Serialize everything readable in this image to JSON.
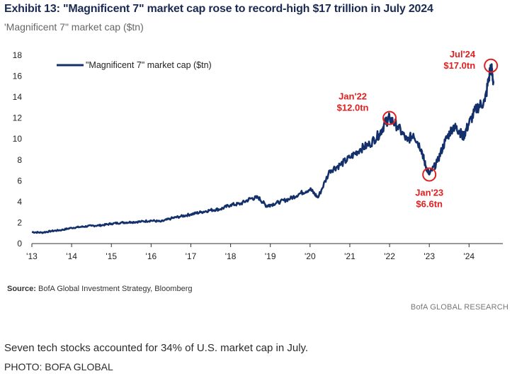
{
  "header": {
    "title": "Exhibit 13: \"Magnificent 7\" market cap rose to record-high $17 trillion in July 2024",
    "subtitle": "'Magnificent 7\" market cap ($tn)"
  },
  "footer": {
    "source_label": "Source:",
    "source_text": " BofA Global Investment Strategy, Bloomberg",
    "brand": "BofA GLOBAL RESEARCH"
  },
  "article": {
    "caption": "Seven tech stocks accounted for 34% of U.S. market cap in July.",
    "credit": "PHOTO: BOFA GLOBAL"
  },
  "colors": {
    "line": "#14306b",
    "annotation": "#e02020",
    "axis": "#333333"
  },
  "chart_data": {
    "type": "line",
    "title": "Exhibit 13: \"Magnificent 7\" market cap rose to record-high $17 trillion in July 2024",
    "ylim": [
      0,
      18
    ],
    "yticks": [
      0,
      2,
      4,
      6,
      8,
      10,
      12,
      14,
      16,
      18
    ],
    "xlim": [
      2013,
      2024.85
    ],
    "xticks": [
      "'13",
      "'14",
      "'15",
      "'16",
      "'17",
      "'18",
      "'19",
      "'20",
      "'21",
      "'22",
      "'23",
      "'24"
    ],
    "xtick_values": [
      2013,
      2014,
      2015,
      2016,
      2017,
      2018,
      2019,
      2020,
      2021,
      2022,
      2023,
      2024
    ],
    "legend": "top-left",
    "grid": false,
    "series": [
      {
        "name": "\"Magnificent 7\" market cap ($tn)",
        "x": [
          2013.0,
          2013.25,
          2013.5,
          2013.75,
          2014.0,
          2014.25,
          2014.5,
          2014.75,
          2015.0,
          2015.25,
          2015.5,
          2015.75,
          2016.0,
          2016.25,
          2016.5,
          2016.75,
          2017.0,
          2017.25,
          2017.5,
          2017.75,
          2018.0,
          2018.25,
          2018.5,
          2018.7,
          2018.9,
          2019.0,
          2019.25,
          2019.5,
          2019.75,
          2020.0,
          2020.2,
          2020.5,
          2020.75,
          2021.0,
          2021.25,
          2021.5,
          2021.75,
          2021.9,
          2022.0,
          2022.2,
          2022.45,
          2022.6,
          2022.8,
          2022.9,
          2023.0,
          2023.2,
          2023.4,
          2023.6,
          2023.75,
          2023.85,
          2024.0,
          2024.2,
          2024.4,
          2024.55,
          2024.62
        ],
        "values": [
          1.1,
          1.05,
          1.2,
          1.3,
          1.5,
          1.6,
          1.7,
          1.75,
          1.9,
          2.0,
          2.05,
          2.1,
          2.2,
          2.1,
          2.4,
          2.6,
          2.8,
          3.0,
          3.2,
          3.3,
          3.7,
          3.8,
          4.3,
          4.4,
          3.6,
          3.7,
          4.0,
          4.3,
          4.8,
          5.2,
          4.4,
          7.0,
          7.5,
          8.2,
          9.0,
          9.5,
          10.5,
          11.6,
          12.0,
          11.2,
          9.8,
          10.5,
          9.0,
          7.5,
          6.6,
          7.8,
          9.8,
          11.2,
          10.8,
          10.2,
          11.5,
          13.0,
          13.6,
          17.0,
          15.3
        ]
      }
    ],
    "annotations": [
      {
        "label": "Jan'22",
        "value_label": "$12.0tn",
        "x": 2022.0,
        "y": 12.0
      },
      {
        "label": "Jan'23",
        "value_label": "$6.6tn",
        "x": 2023.0,
        "y": 6.6
      },
      {
        "label": "Jul'24",
        "value_label": "$17.0tn",
        "x": 2024.55,
        "y": 17.0
      }
    ]
  }
}
